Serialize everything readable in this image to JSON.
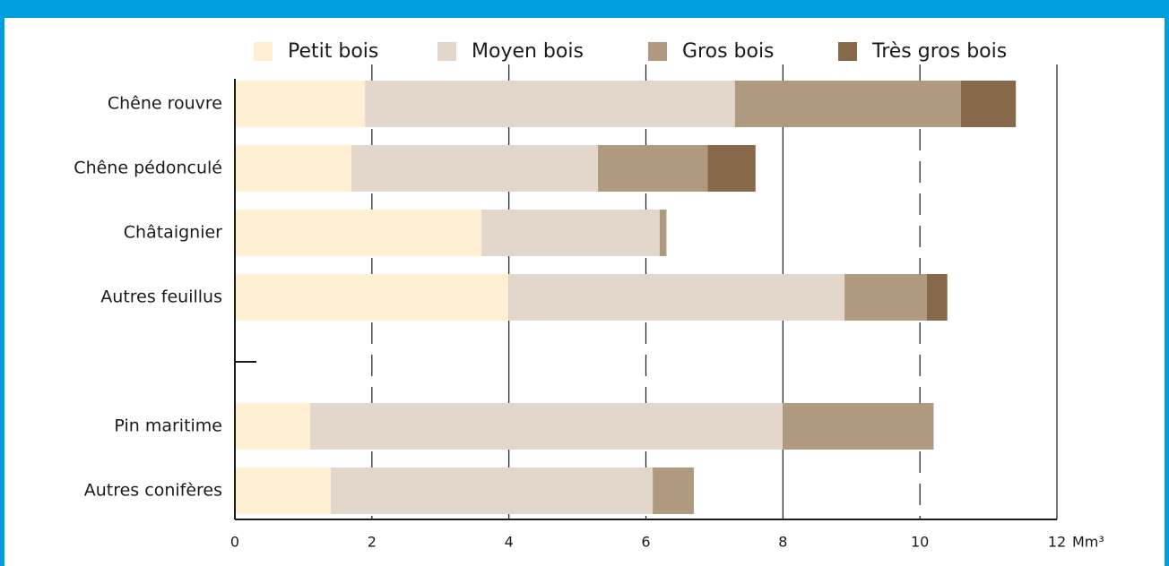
{
  "chart_data": {
    "type": "bar",
    "orientation": "horizontal",
    "stacked": true,
    "categories": [
      "Chêne rouvre",
      "Chêne pédonculé",
      "Châtaignier",
      "Autres feuillus",
      null,
      "Pin maritime",
      "Autres conifères"
    ],
    "series": [
      {
        "name": "Petit bois",
        "color": "#fff0d4",
        "values": [
          1.9,
          1.7,
          3.6,
          4.0,
          null,
          1.1,
          1.4
        ]
      },
      {
        "name": "Moyen bois",
        "color": "#e3d6cb",
        "values": [
          5.4,
          3.6,
          2.6,
          4.9,
          null,
          6.9,
          4.7
        ]
      },
      {
        "name": "Gros bois",
        "color": "#b09a7f",
        "values": [
          3.3,
          1.6,
          0.1,
          1.2,
          null,
          2.2,
          0.6
        ]
      },
      {
        "name": "Très gros bois",
        "color": "#876848",
        "values": [
          0.8,
          0.7,
          0,
          0.3,
          null,
          0,
          0
        ]
      }
    ],
    "xlim": [
      0,
      12
    ],
    "xticks": [
      0,
      2,
      4,
      6,
      8,
      10,
      12
    ],
    "x_unit": "Mm³",
    "grid_solid": [
      4,
      8,
      12
    ],
    "grid_dashed": [
      2,
      6,
      10
    ]
  }
}
